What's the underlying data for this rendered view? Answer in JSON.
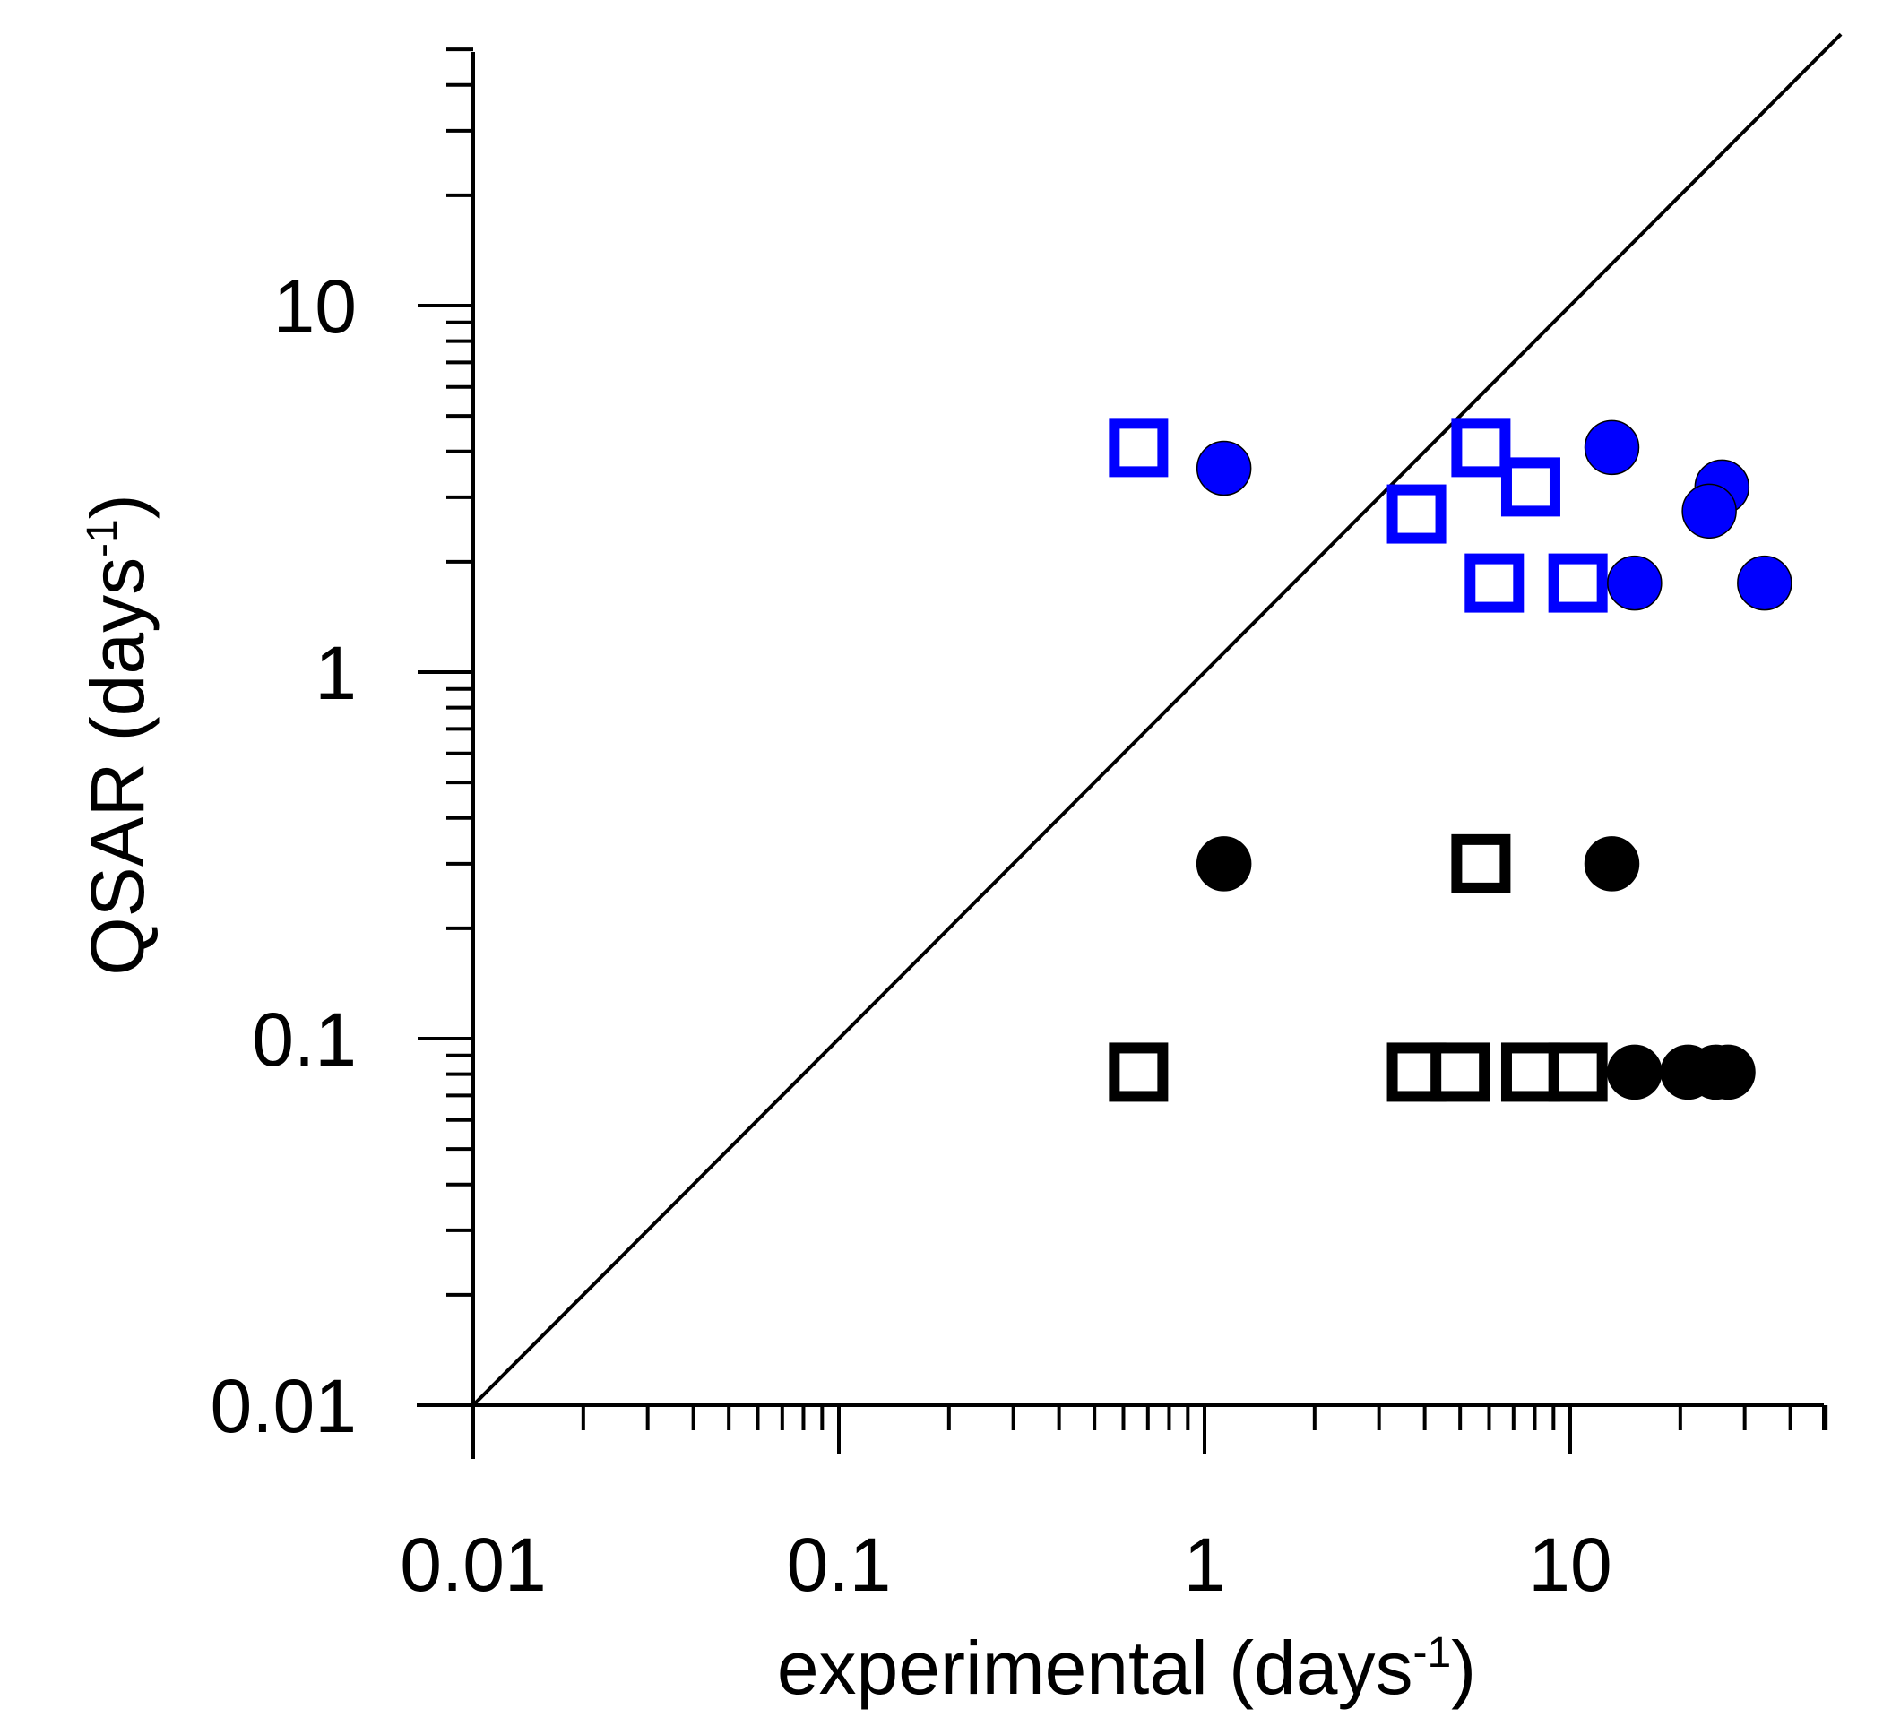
{
  "chart_data": {
    "type": "scatter",
    "title": "",
    "xlabel": {
      "main": "experimental (days",
      "sup": "-1",
      "close": ")"
    },
    "ylabel": {
      "main": "QSAR (days",
      "sup": "-1",
      "close": ")"
    },
    "xscale": "log",
    "yscale": "log",
    "xlim": [
      0.01,
      55
    ],
    "ylim": [
      0.01,
      50
    ],
    "xticks": [
      {
        "value": 0.01,
        "label": "0.01"
      },
      {
        "value": 0.1,
        "label": "0.1"
      },
      {
        "value": 1,
        "label": "1"
      },
      {
        "value": 10,
        "label": "10"
      }
    ],
    "yticks": [
      {
        "value": 0.01,
        "label": "0.01"
      },
      {
        "value": 0.1,
        "label": "0.1"
      },
      {
        "value": 1,
        "label": "1"
      },
      {
        "value": 10,
        "label": "10"
      }
    ],
    "reference_line": {
      "type": "1:1",
      "from": [
        0.01,
        0.01
      ],
      "to": [
        55,
        55
      ],
      "color": "#000000"
    },
    "grid": false,
    "legend": "none",
    "series": [
      {
        "name": "blue-open-squares",
        "marker": "square-open",
        "color": "#0000ff",
        "points": [
          [
            0.66,
            4.1
          ],
          [
            3.8,
            2.7
          ],
          [
            5.7,
            4.1
          ],
          [
            7.8,
            3.2
          ],
          [
            6.2,
            1.75
          ],
          [
            10.5,
            1.75
          ]
        ]
      },
      {
        "name": "blue-filled-circles",
        "marker": "circle-filled",
        "color": "#0000ff",
        "points": [
          [
            1.13,
            3.6
          ],
          [
            13.0,
            4.1
          ],
          [
            15.0,
            1.75
          ],
          [
            26.0,
            3.2
          ],
          [
            24.0,
            2.75
          ],
          [
            34.0,
            1.75
          ]
        ]
      },
      {
        "name": "black-open-squares",
        "marker": "square-open",
        "color": "#000000",
        "points": [
          [
            0.66,
            0.081
          ],
          [
            3.8,
            0.081
          ],
          [
            5.0,
            0.081
          ],
          [
            5.7,
            0.3
          ],
          [
            7.8,
            0.081
          ],
          [
            10.5,
            0.081
          ]
        ]
      },
      {
        "name": "black-filled-circles",
        "marker": "circle-filled",
        "color": "#000000",
        "points": [
          [
            1.13,
            0.3
          ],
          [
            13.0,
            0.3
          ],
          [
            15.0,
            0.081
          ],
          [
            21.0,
            0.081
          ],
          [
            25.0,
            0.081
          ],
          [
            27.0,
            0.081
          ]
        ]
      }
    ]
  }
}
